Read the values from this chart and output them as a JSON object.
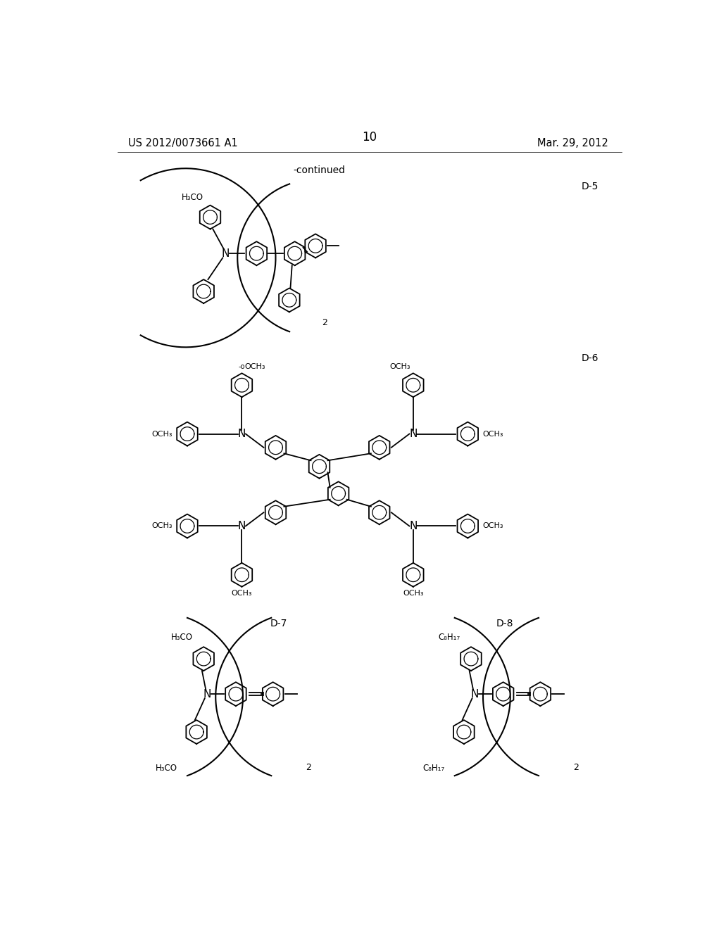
{
  "background_color": "#ffffff",
  "header_left": "US 2012/0073661 A1",
  "header_center": "10",
  "header_right": "Mar. 29, 2012",
  "continued_text": "-continued",
  "label_d5": "D-5",
  "label_d6": "D-6",
  "label_d7": "D-7",
  "label_d8": "D-8"
}
